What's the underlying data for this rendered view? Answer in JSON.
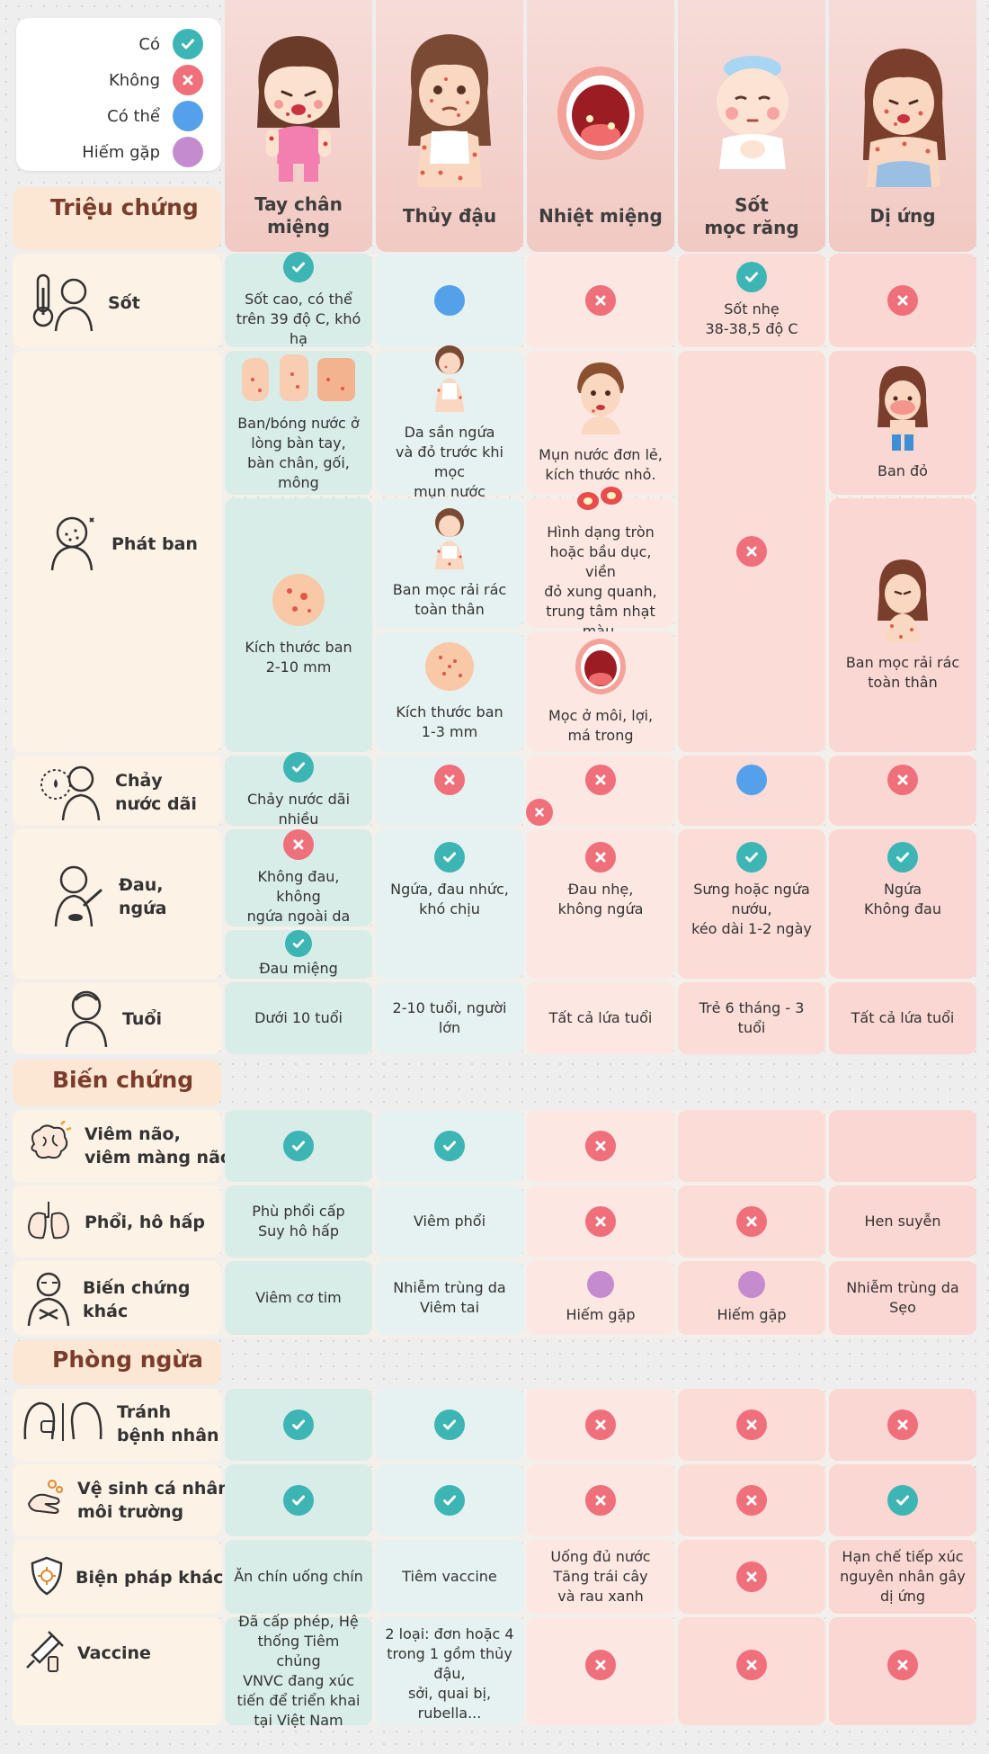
{
  "legend": [
    {
      "label": "Có",
      "kind": "yes"
    },
    {
      "label": "Không",
      "kind": "no"
    },
    {
      "label": "Có thể",
      "kind": "maybe"
    },
    {
      "label": "Hiếm gặp",
      "kind": "rare"
    }
  ],
  "colors": {
    "yes": "#3db5b4",
    "no": "#ef6f7a",
    "maybe": "#55a0ea",
    "rare": "#c58bcf",
    "section_title": "#7b3c2c"
  },
  "sections": {
    "symptoms": "Triệu chứng",
    "complications": "Biến chứng",
    "prevention": "Phòng ngừa"
  },
  "diseases": [
    "Tay chân miệng",
    "Thủy đậu",
    "Nhiệt miệng",
    "Sốt\nmọc răng",
    "Dị ứng"
  ],
  "rows": {
    "fever": {
      "label": "Sốt",
      "icon": "thermometer-person-icon",
      "cells": [
        {
          "status": "yes",
          "text": "Sốt cao, có thể\ntrên 39 độ C, khó hạ"
        },
        {
          "status": "maybe",
          "text": ""
        },
        {
          "status": "no",
          "text": ""
        },
        {
          "status": "yes",
          "text": "Sốt nhẹ\n38-38,5 độ C"
        },
        {
          "status": "no",
          "text": ""
        }
      ]
    },
    "rash": {
      "label": "Phát ban",
      "icon": "rash-face-icon",
      "hfmd_a": "Ban/bóng nước ở\nlòng bàn tay,\nbàn chân, gối, mông",
      "hfmd_b": "Kích thước ban\n2-10 mm",
      "chickenpox_a": "Da sần ngứa\nvà đỏ trước khi mọc\nmụn nước",
      "chickenpox_b": "Ban mọc rải rác\ntoàn thân",
      "chickenpox_c": "Kích thước ban\n1-3 mm",
      "canker_a": "Mụn nước đơn lẻ,\nkích thước nhỏ.",
      "canker_b": "Hình dạng tròn\nhoặc bầu dục, viền\nđỏ xung quanh,\ntrung tâm nhạt màu.",
      "canker_c": "Mọc ở môi, lợi,\nmá trong",
      "teething_status": "no",
      "allergy_a": "Ban đỏ",
      "allergy_b": "Ban mọc rải rác\ntoàn thân"
    },
    "drool": {
      "label": "Chảy\nnước dãi",
      "icon": "drooling-person-icon",
      "cells": [
        {
          "status": "yes",
          "text": "Chảy nước dãi nhiều"
        },
        {
          "status": "no",
          "text": ""
        },
        {
          "status": "no",
          "text": ""
        },
        {
          "status": "maybe",
          "text": ""
        },
        {
          "status": "no",
          "text": ""
        }
      ]
    },
    "pain": {
      "label": "Đau,\nngứa",
      "icon": "scratching-person-icon",
      "hfmd_a": {
        "status": "no",
        "text": "Không đau, không\nngứa ngoài da"
      },
      "hfmd_b": {
        "status": "yes",
        "text": "Đau miệng"
      },
      "cells": [
        {
          "status": "yes",
          "text": "Ngứa, đau nhức,\nkhó chịu"
        },
        {
          "status": "no",
          "text": "Đau nhẹ,\nkhông ngứa"
        },
        {
          "status": "yes",
          "text": "Sưng hoặc ngứa nướu,\nkéo dài 1-2 ngày"
        },
        {
          "status": "yes",
          "text": "Ngứa\nKhông đau"
        }
      ]
    },
    "age": {
      "label": "Tuổi",
      "icon": "person-icon",
      "cells": [
        {
          "status": "",
          "text": "Dưới 10 tuổi"
        },
        {
          "status": "",
          "text": "2-10 tuổi, người lớn"
        },
        {
          "status": "",
          "text": "Tất cả lứa tuổi"
        },
        {
          "status": "",
          "text": "Trẻ 6 tháng - 3 tuổi"
        },
        {
          "status": "",
          "text": "Tất cả lứa tuổi"
        }
      ]
    },
    "brain": {
      "label": "Viêm não,\nviêm màng não",
      "icon": "brain-icon",
      "cells": [
        {
          "status": "yes",
          "text": ""
        },
        {
          "status": "yes",
          "text": ""
        },
        {
          "status": "no",
          "text": ""
        },
        {
          "status": "",
          "text": ""
        },
        {
          "status": "",
          "text": ""
        }
      ]
    },
    "lung": {
      "label": "Phổi, hô hấp",
      "icon": "lungs-icon",
      "cells": [
        {
          "status": "",
          "text": "Phù phổi cấp\nSuy hô hấp"
        },
        {
          "status": "",
          "text": "Viêm phổi"
        },
        {
          "status": "no",
          "text": ""
        },
        {
          "status": "no",
          "text": ""
        },
        {
          "status": "",
          "text": "Hen suyễn"
        }
      ]
    },
    "other_comp": {
      "label": "Biến chứng\nkhác",
      "icon": "sick-person-icon",
      "cells": [
        {
          "status": "",
          "text": "Viêm cơ tim"
        },
        {
          "status": "",
          "text": "Nhiễm trùng da\nViêm tai"
        },
        {
          "status": "rare",
          "text": "Hiếm gặp"
        },
        {
          "status": "rare",
          "text": "Hiếm gặp"
        },
        {
          "status": "",
          "text": "Nhiễm trùng da\nSẹo"
        }
      ]
    },
    "avoid": {
      "label": "Tránh\nbệnh nhân",
      "icon": "mask-person-icon",
      "cells": [
        {
          "status": "yes",
          "text": ""
        },
        {
          "status": "yes",
          "text": ""
        },
        {
          "status": "no",
          "text": ""
        },
        {
          "status": "no",
          "text": ""
        },
        {
          "status": "no",
          "text": ""
        }
      ]
    },
    "hygiene": {
      "label": "Vệ sinh cá nhân,\nmôi trường",
      "icon": "hand-washing-icon",
      "cells": [
        {
          "status": "yes",
          "text": ""
        },
        {
          "status": "yes",
          "text": ""
        },
        {
          "status": "no",
          "text": ""
        },
        {
          "status": "no",
          "text": ""
        },
        {
          "status": "yes",
          "text": ""
        }
      ]
    },
    "other_measures": {
      "label": "Biện pháp khác",
      "icon": "shield-icon",
      "cells": [
        {
          "status": "",
          "text": "Ăn chín uống chín"
        },
        {
          "status": "",
          "text": "Tiêm vaccine"
        },
        {
          "status": "",
          "text": "Uống đủ nước\nTăng trái cây\nvà rau xanh"
        },
        {
          "status": "no",
          "text": ""
        },
        {
          "status": "",
          "text": "Hạn chế tiếp xúc\nnguyên nhân gây\ndị ứng"
        }
      ]
    },
    "vaccine": {
      "label": "Vaccine",
      "icon": "syringe-icon",
      "cells": [
        {
          "status": "",
          "text": "Đã cấp phép, Hệ\nthống Tiêm chủng\nVNVC đang xúc\ntiến để triển khai\ntại Việt Nam"
        },
        {
          "status": "",
          "text": "2 loại: đơn hoặc 4\ntrong 1 gồm thủy đậu,\nsởi, quai bị, rubella..."
        },
        {
          "status": "no",
          "text": ""
        },
        {
          "status": "no",
          "text": ""
        },
        {
          "status": "no",
          "text": ""
        }
      ]
    }
  }
}
